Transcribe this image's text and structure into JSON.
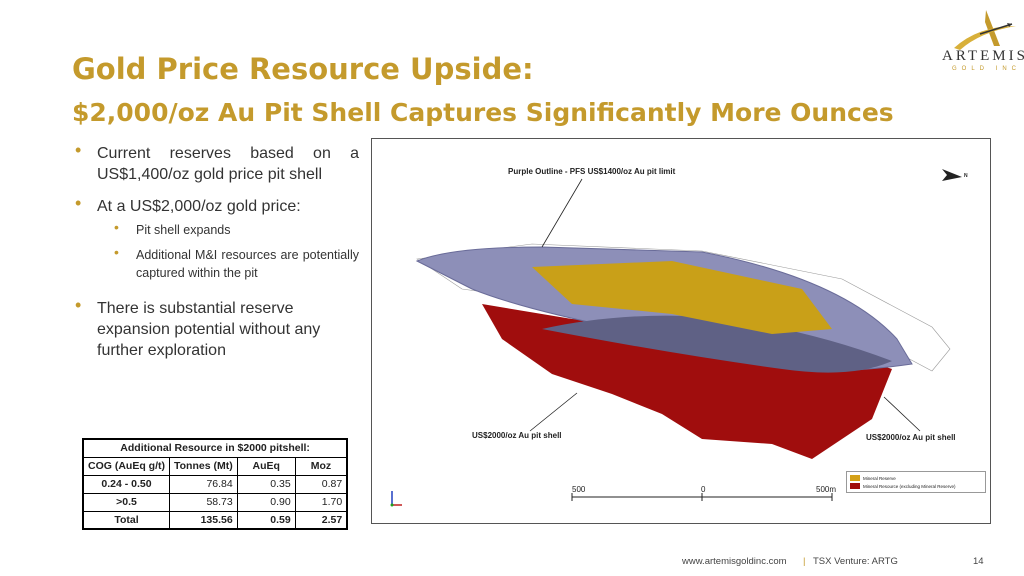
{
  "header": {
    "title_line1": "Gold Price Resource Upside:",
    "title_line2": "$2,000/oz Au Pit Shell Captures Significantly More Ounces"
  },
  "logo": {
    "name": "ARTEMIS",
    "sub": "GOLD INC"
  },
  "bullets": [
    {
      "text": "Current reserves based on a US$1,400/oz gold price pit shell"
    },
    {
      "text": "At a US$2,000/oz gold price:",
      "sub": [
        "Pit shell expands",
        "Additional M&I resources are potentially captured within the pit"
      ]
    },
    {
      "text": "There is substantial reserve expansion potential without any further exploration"
    }
  ],
  "figure": {
    "label_top": "Purple Outline - PFS US$1400/oz Au pit limit",
    "label_left": "US$2000/oz Au pit shell",
    "label_right": "US$2000/oz Au pit shell",
    "north": "N",
    "scale": [
      "500",
      "0",
      "500m"
    ],
    "legend": [
      {
        "label": "Mineral Reserve",
        "color": "#d4a017"
      },
      {
        "label": "Mineral Resource (excluding Mineral Reserve)",
        "color": "#a00d0d"
      }
    ]
  },
  "table": {
    "title": "Additional Resource in $2000 pitshell:",
    "headers": [
      "COG (AuEq g/t)",
      "Tonnes (Mt)",
      "AuEq",
      "Moz"
    ],
    "rows": [
      [
        "0.24 - 0.50",
        "76.84",
        "0.35",
        "0.87"
      ],
      [
        ">0.5",
        "58.73",
        "0.90",
        "1.70"
      ],
      [
        "Total",
        "135.56",
        "0.59",
        "2.57"
      ]
    ]
  },
  "footer": {
    "website": "www.artemisgoldinc.com",
    "exchange": "TSX Venture: ARTG",
    "page": "14"
  }
}
